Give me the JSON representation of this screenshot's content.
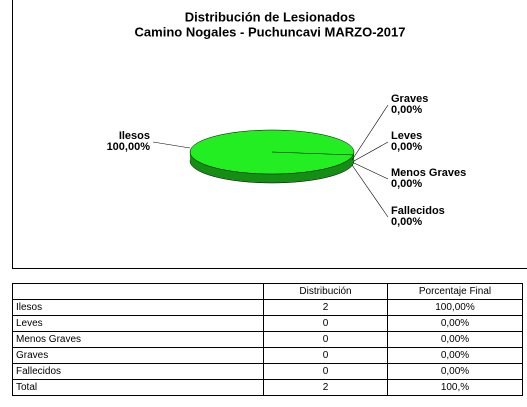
{
  "chart_data": {
    "type": "pie",
    "title": [
      "Distribución de Lesionados",
      "Camino Nogales - Puchuncavi MARZO-2017"
    ],
    "categories": [
      "Ilesos",
      "Graves",
      "Leves",
      "Menos Graves",
      "Fallecidos"
    ],
    "values": [
      100,
      0,
      0,
      0,
      0
    ],
    "value_labels": [
      "100,00%",
      "0,00%",
      "0,00%",
      "0,00%",
      "0,00%"
    ],
    "colors": [
      "#22ee22",
      "#0a2ccc",
      "#0a2ccc",
      "#0a2ccc",
      "#0a2ccc"
    ]
  },
  "table": {
    "columns": [
      "Distribución",
      "Porcentaje Final"
    ],
    "rows": [
      [
        "Ilesos",
        "2",
        "100,00%"
      ],
      [
        "Leves",
        "0",
        "0,00%"
      ],
      [
        "Menos Graves",
        "0",
        "0,00%"
      ],
      [
        "Graves",
        "0",
        "0,00%"
      ],
      [
        "Fallecidos",
        "0",
        "0,00%"
      ],
      [
        "Total",
        "2",
        "100,%"
      ]
    ]
  }
}
